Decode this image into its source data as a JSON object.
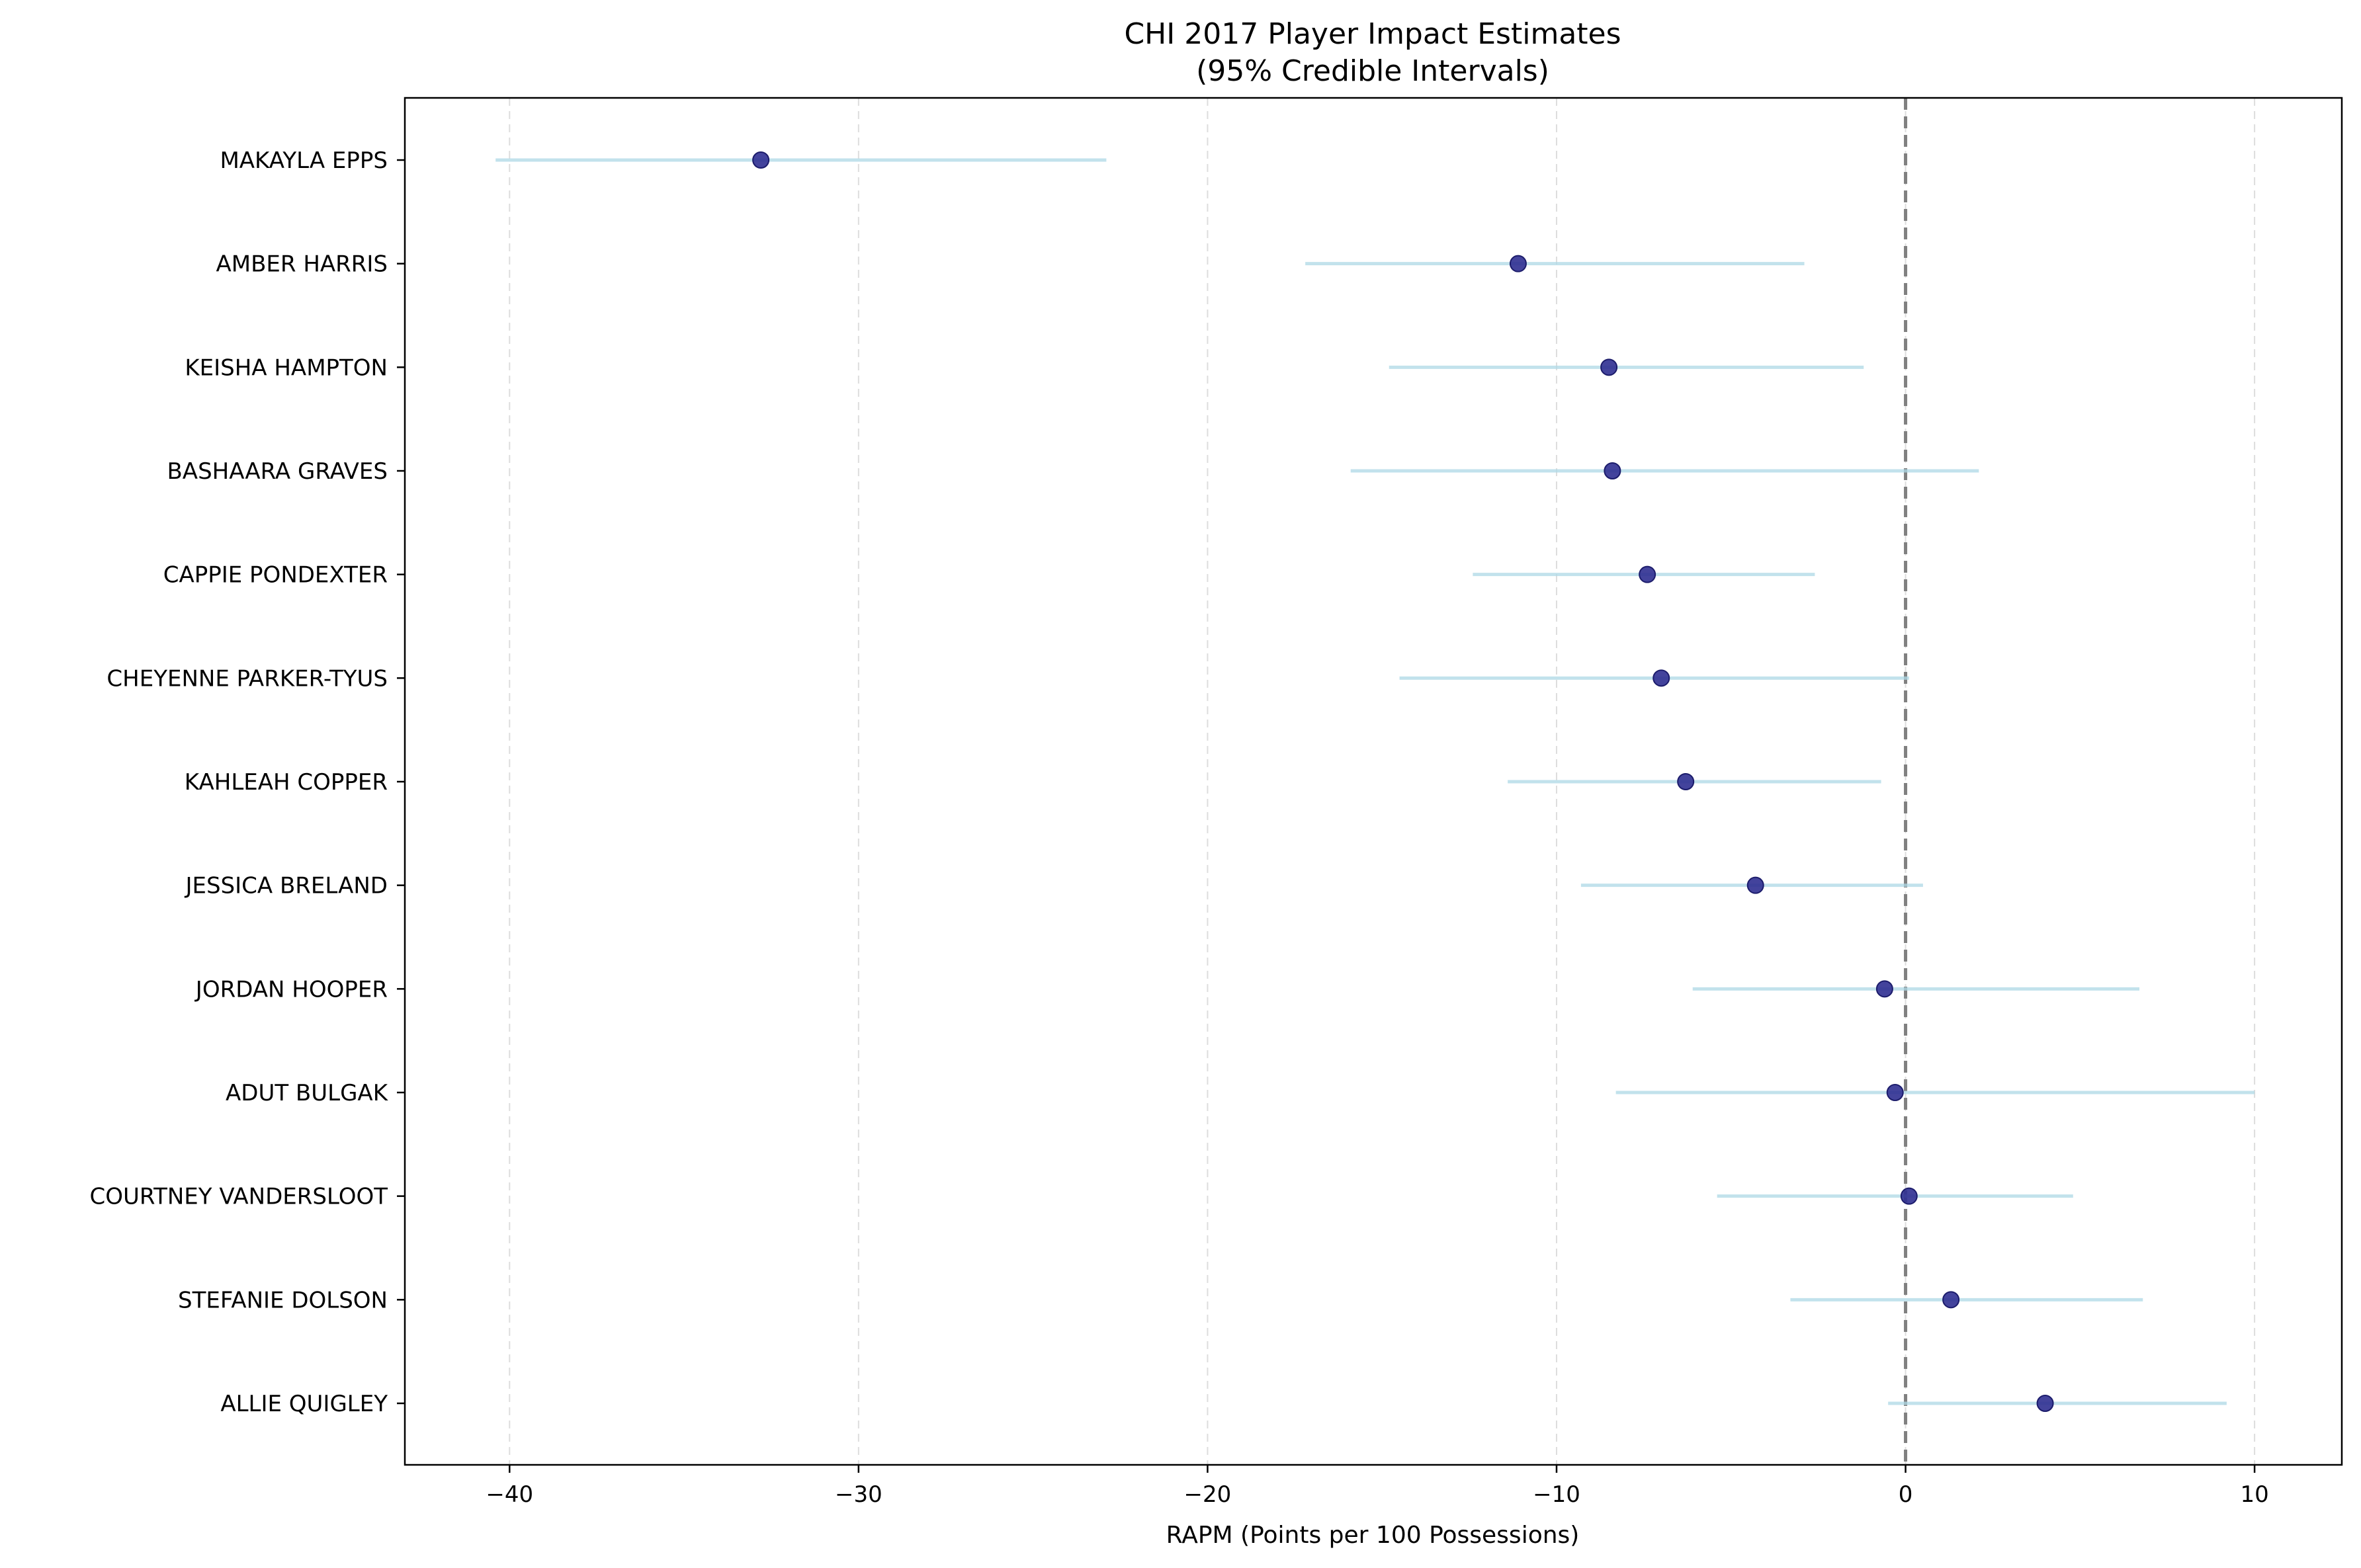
{
  "chart_data": {
    "type": "scatter",
    "title": "CHI 2017 Player Impact Estimates",
    "subtitle": "(95% Credible Intervals)",
    "xlabel": "RAPM (Points per 100 Possessions)",
    "ylabel": "",
    "xlim": [
      -43,
      12.5
    ],
    "xticks": [
      -40,
      -30,
      -20,
      -10,
      0,
      10
    ],
    "xtick_labels": [
      "−40",
      "−30",
      "−20",
      "−10",
      "0",
      "10"
    ],
    "grid": "x-dashed",
    "reference_line_x": 0,
    "players": [
      {
        "name": "MAKAYLA EPPS",
        "estimate": -32.8,
        "lower": -40.4,
        "upper": -22.9
      },
      {
        "name": "AMBER HARRIS",
        "estimate": -11.1,
        "lower": -17.2,
        "upper": -2.9
      },
      {
        "name": "KEISHA HAMPTON",
        "estimate": -8.5,
        "lower": -14.8,
        "upper": -1.2
      },
      {
        "name": "BASHAARA GRAVES",
        "estimate": -8.4,
        "lower": -15.9,
        "upper": 2.1
      },
      {
        "name": "CAPPIE PONDEXTER",
        "estimate": -7.4,
        "lower": -12.4,
        "upper": -2.6
      },
      {
        "name": "CHEYENNE PARKER-TYUS",
        "estimate": -7.0,
        "lower": -14.5,
        "upper": 0.1
      },
      {
        "name": "KAHLEAH COPPER",
        "estimate": -6.3,
        "lower": -11.4,
        "upper": -0.7
      },
      {
        "name": "JESSICA BRELAND",
        "estimate": -4.3,
        "lower": -9.3,
        "upper": 0.5
      },
      {
        "name": "JORDAN HOOPER",
        "estimate": -0.6,
        "lower": -6.1,
        "upper": 6.7
      },
      {
        "name": "ADUT BULGAK",
        "estimate": -0.3,
        "lower": -8.3,
        "upper": 10.0
      },
      {
        "name": "COURTNEY VANDERSLOOT",
        "estimate": 0.1,
        "lower": -5.4,
        "upper": 4.8
      },
      {
        "name": "STEFANIE DOLSON",
        "estimate": 1.3,
        "lower": -3.3,
        "upper": 6.8
      },
      {
        "name": "ALLIE QUIGLEY",
        "estimate": 4.0,
        "lower": -0.5,
        "upper": 9.2
      }
    ],
    "colors": {
      "point_fill": "#2f2f91",
      "point_edge": "#1c1c6b",
      "interval": "#add8e6",
      "reference_line": "#808080",
      "grid": "#dddddd",
      "axes": "#000000"
    }
  }
}
